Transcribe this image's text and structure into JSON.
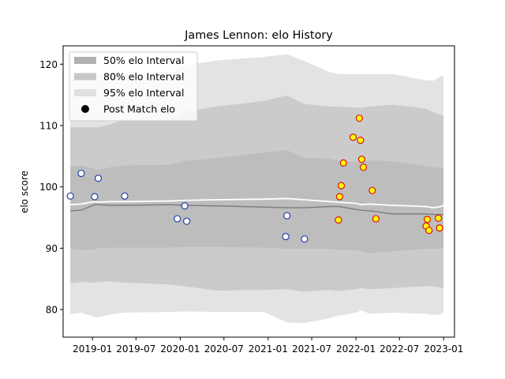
{
  "chart_data": {
    "type": "area",
    "title": "James Lennon: elo History",
    "xlabel": "",
    "ylabel": "elo score",
    "xlim": [
      "2018-09-01",
      "2023-02-15"
    ],
    "ylim": [
      75.5,
      123
    ],
    "grid": false,
    "legend_position": "top-left",
    "x_ticks": [
      "2019-01",
      "2019-07",
      "2020-01",
      "2020-07",
      "2021-01",
      "2021-07",
      "2022-01",
      "2022-07",
      "2023-01"
    ],
    "y_ticks": [
      80,
      90,
      100,
      110,
      120
    ],
    "legend": [
      {
        "label": "50% elo Interval",
        "kind": "band",
        "color": "#b0b0b0"
      },
      {
        "label": "80% elo Interval",
        "kind": "band",
        "color": "#c8c8c8"
      },
      {
        "label": "95% elo Interval",
        "kind": "band",
        "color": "#e0e0e0"
      },
      {
        "label": "Post Match elo",
        "kind": "marker",
        "color": "#000000"
      }
    ],
    "colors": {
      "band95": "#e3e3e3",
      "band80": "#cbcbcb",
      "band50": "#bdbdbd",
      "mean_line": "#808080",
      "median_line": "#ffffff",
      "past_marker_edge": "#1f3fa8",
      "recent_marker_fill": "#ffff00",
      "recent_marker_edge": "#dd1111"
    },
    "band_dates": [
      "2018-10-01",
      "2018-11-15",
      "2019-01-10",
      "2019-01-25",
      "2019-03-15",
      "2019-05-15",
      "2019-11-15",
      "2020-01-20",
      "2020-06-01",
      "2020-12-15",
      "2021-03-20",
      "2021-06-01",
      "2021-09-15",
      "2021-10-20",
      "2022-01-05",
      "2022-01-20",
      "2022-03-01",
      "2022-06-01",
      "2022-10-15",
      "2022-11-20",
      "2022-12-20",
      "2022-12-31"
    ],
    "band95_upper": [
      118.4,
      118.4,
      118.4,
      118.4,
      118.4,
      118.5,
      118.5,
      119.8,
      120.6,
      121.2,
      121.6,
      120.5,
      118.7,
      118.4,
      118.4,
      118.4,
      118.4,
      118.4,
      117.4,
      117.3,
      118.0,
      118.1
    ],
    "band80_upper": [
      109.7,
      109.7,
      109.7,
      109.7,
      110.2,
      111.0,
      111.0,
      112.3,
      113.1,
      114.0,
      114.9,
      113.5,
      113.1,
      113.1,
      112.9,
      112.9,
      113.1,
      113.4,
      112.8,
      112.2,
      111.7,
      111.6
    ],
    "band50_upper": [
      103.3,
      103.5,
      103.0,
      102.8,
      103.2,
      103.5,
      103.6,
      104.2,
      104.7,
      105.6,
      106.0,
      104.7,
      104.6,
      104.3,
      104.0,
      104.0,
      104.3,
      104.2,
      103.4,
      103.2,
      103.1,
      103.1
    ],
    "band50_lower": [
      89.9,
      89.7,
      89.8,
      90.0,
      90.1,
      90.1,
      90.1,
      90.2,
      90.2,
      90.1,
      89.9,
      89.9,
      89.9,
      89.7,
      89.7,
      89.5,
      89.2,
      89.5,
      89.9,
      89.9,
      89.9,
      90.0
    ],
    "band80_lower": [
      84.3,
      84.5,
      84.4,
      84.5,
      84.6,
      84.4,
      84.1,
      83.8,
      83.1,
      83.2,
      83.3,
      82.9,
      83.2,
      83.0,
      83.3,
      83.5,
      83.3,
      83.5,
      83.8,
      83.8,
      83.6,
      83.4
    ],
    "band95_lower": [
      79.2,
      79.5,
      78.8,
      78.7,
      79.2,
      79.5,
      79.6,
      79.7,
      79.6,
      79.6,
      77.9,
      77.8,
      78.6,
      79.0,
      79.5,
      79.9,
      79.3,
      79.5,
      79.3,
      79.1,
      79.2,
      79.5
    ],
    "mean_line": [
      96.1,
      96.2,
      97.1,
      97.1,
      97.0,
      97.0,
      97.1,
      97.0,
      96.9,
      96.7,
      96.6,
      96.6,
      96.8,
      96.8,
      96.3,
      96.2,
      96.1,
      95.6,
      95.6,
      95.5,
      95.5,
      95.5
    ],
    "median_line": [
      97.1,
      97.2,
      97.6,
      97.5,
      97.6,
      97.6,
      97.7,
      97.8,
      97.9,
      98.0,
      98.1,
      97.9,
      97.6,
      97.5,
      97.3,
      97.1,
      97.2,
      97.0,
      96.8,
      96.6,
      96.8,
      97.0
    ],
    "past_matches": [
      {
        "date": "2018-10-01",
        "elo": 98.5
      },
      {
        "date": "2018-11-15",
        "elo": 102.2
      },
      {
        "date": "2019-01-10",
        "elo": 98.4
      },
      {
        "date": "2019-01-25",
        "elo": 101.4
      },
      {
        "date": "2019-05-15",
        "elo": 98.5
      },
      {
        "date": "2019-12-20",
        "elo": 94.8
      },
      {
        "date": "2020-01-20",
        "elo": 96.9
      },
      {
        "date": "2020-01-28",
        "elo": 94.4
      },
      {
        "date": "2021-03-20",
        "elo": 95.3
      },
      {
        "date": "2021-03-15",
        "elo": 91.9
      },
      {
        "date": "2021-06-01",
        "elo": 91.5
      }
    ],
    "recent_matches": [
      {
        "date": "2021-10-20",
        "elo": 94.6
      },
      {
        "date": "2021-10-25",
        "elo": 98.4
      },
      {
        "date": "2021-11-01",
        "elo": 100.2
      },
      {
        "date": "2021-11-10",
        "elo": 103.9
      },
      {
        "date": "2021-12-20",
        "elo": 108.1
      },
      {
        "date": "2022-01-15",
        "elo": 111.2
      },
      {
        "date": "2022-01-20",
        "elo": 107.6
      },
      {
        "date": "2022-01-25",
        "elo": 104.5
      },
      {
        "date": "2022-02-01",
        "elo": 103.2
      },
      {
        "date": "2022-03-10",
        "elo": 99.4
      },
      {
        "date": "2022-03-25",
        "elo": 94.8
      },
      {
        "date": "2022-10-20",
        "elo": 93.6
      },
      {
        "date": "2022-10-25",
        "elo": 94.7
      },
      {
        "date": "2022-11-01",
        "elo": 92.9
      },
      {
        "date": "2022-12-10",
        "elo": 94.9
      },
      {
        "date": "2022-12-15",
        "elo": 93.3
      }
    ]
  }
}
